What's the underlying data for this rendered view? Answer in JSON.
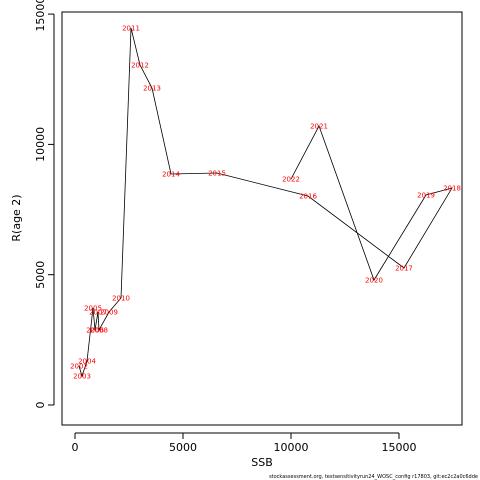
{
  "chart_data": {
    "type": "line",
    "x_label": "SSB",
    "y_label": "R(age 2)",
    "footer": "stockassessment.org, testsensitivityrun24_WOSC_config r17803, git:ec2c2a0c6dde",
    "point_labels": [
      "2002",
      "2003",
      "2004",
      "2005",
      "2006",
      "2007",
      "2008",
      "2009",
      "2010",
      "2011",
      "2012",
      "2013",
      "2014",
      "2015",
      "2016",
      "2017",
      "2018",
      "2019",
      "2020",
      "2021",
      "2022"
    ],
    "x": [
      185,
      324,
      556,
      833,
      926,
      1065,
      1111,
      1574,
      2130,
      2593,
      3009,
      3565,
      4445,
      6574,
      10787,
      15231,
      17454,
      16250,
      13843,
      11297,
      10000
    ],
    "values": [
      1496,
      1113,
      1688,
      3722,
      2878,
      3569,
      2878,
      3569,
      4106,
      14466,
      13046,
      12163,
      8864,
      8902,
      8019,
      5257,
      8326,
      8058,
      4796,
      10705,
      8672
    ],
    "color": "#000000",
    "label_color": "#ff0000",
    "xlim": [
      -602,
      17917
    ],
    "ylim": [
      -767,
      15080
    ],
    "xticks": [
      0,
      5000,
      10000,
      15000
    ],
    "yticks": [
      0,
      5000,
      10000,
      15000
    ]
  }
}
